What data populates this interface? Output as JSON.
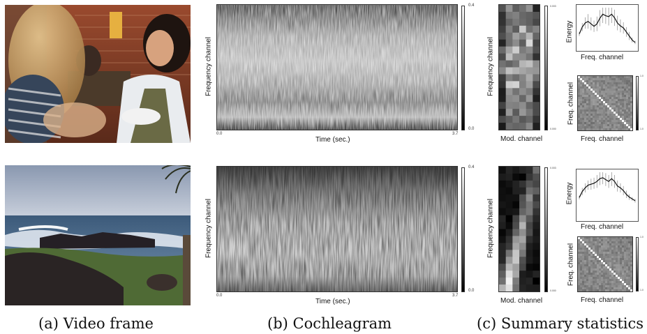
{
  "captions": {
    "a": "(a) Video frame",
    "b": "(b) Cochleagram",
    "c": "(c) Summary statistics"
  },
  "rows": [
    {
      "id": "crowd",
      "cochleagram": {
        "ylabel": "Frequency channel",
        "xlabel": "Time (sec.)",
        "x_start": "0.0",
        "x_end": "3.7",
        "cbar_max": "0.4",
        "cbar_min": "0.0"
      },
      "modulation": {
        "ylabel": "Frequency channel",
        "xlabel": "Mod. channel",
        "cbar_max": "0.003",
        "cbar_min": "0.000"
      },
      "energy": {
        "ylabel": "Energy",
        "xlabel": "Freq. channel",
        "values": [
          0.35,
          0.52,
          0.62,
          0.66,
          0.6,
          0.54,
          0.6,
          0.74,
          0.84,
          0.8,
          0.78,
          0.84,
          0.75,
          0.62,
          0.55,
          0.5,
          0.4,
          0.3,
          0.2,
          0.14
        ],
        "err": [
          0.05,
          0.1,
          0.14,
          0.18,
          0.16,
          0.14,
          0.18,
          0.2,
          0.22,
          0.2,
          0.22,
          0.22,
          0.2,
          0.18,
          0.16,
          0.14,
          0.12,
          0.1,
          0.06,
          0.04
        ]
      },
      "correlation": {
        "ylabel": "Freq. channel",
        "xlabel": "Freq. channel",
        "cbar_max": "1.0",
        "cbar_min": "1.0"
      }
    },
    {
      "id": "ocean",
      "cochleagram": {
        "ylabel": "Frequency channel",
        "xlabel": "Time (sec.)",
        "x_start": "0.0",
        "x_end": "3.7",
        "cbar_max": "0.4",
        "cbar_min": "0.0"
      },
      "modulation": {
        "ylabel": "Frequency channel",
        "xlabel": "Mod. channel",
        "cbar_max": "0.003",
        "cbar_min": "0.000"
      },
      "energy": {
        "ylabel": "Energy",
        "xlabel": "Freq. channel",
        "values": [
          0.45,
          0.58,
          0.66,
          0.72,
          0.74,
          0.76,
          0.8,
          0.86,
          0.88,
          0.84,
          0.8,
          0.86,
          0.8,
          0.7,
          0.66,
          0.6,
          0.52,
          0.46,
          0.42,
          0.38
        ],
        "err": [
          0.04,
          0.08,
          0.1,
          0.1,
          0.12,
          0.12,
          0.14,
          0.14,
          0.14,
          0.14,
          0.14,
          0.16,
          0.14,
          0.12,
          0.1,
          0.1,
          0.08,
          0.06,
          0.04,
          0.04
        ]
      },
      "correlation": {
        "ylabel": "Freq. channel",
        "xlabel": "Freq. channel",
        "cbar_max": "1.0",
        "cbar_min": "1.0"
      }
    }
  ]
}
